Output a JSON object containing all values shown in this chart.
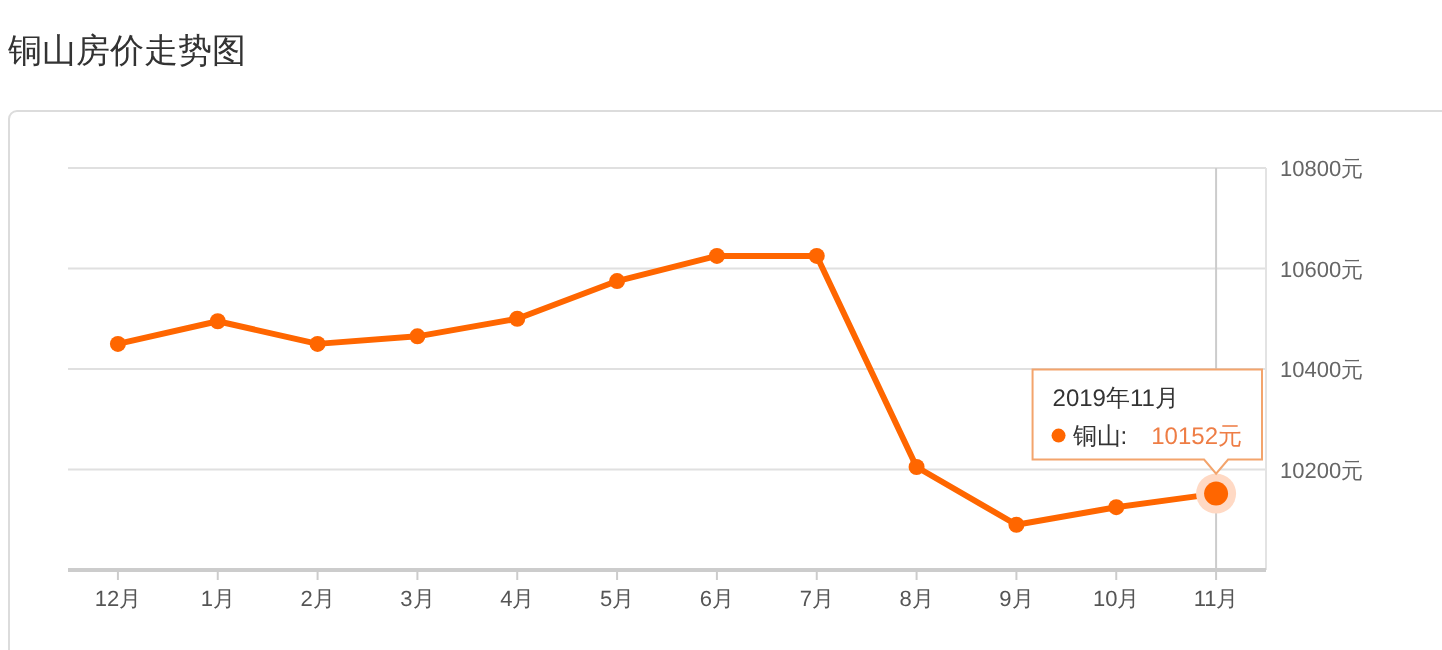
{
  "chart_data": {
    "type": "line",
    "title": "铜山房价走势图",
    "categories": [
      "12月",
      "1月",
      "2月",
      "3月",
      "4月",
      "5月",
      "6月",
      "7月",
      "8月",
      "9月",
      "10月",
      "11月"
    ],
    "series": [
      {
        "name": "铜山:",
        "color": "#ff6600",
        "values": [
          10450,
          10495,
          10450,
          10465,
          10500,
          10575,
          10625,
          10625,
          10205,
          10090,
          10125,
          10152
        ],
        "value_labels": [
          null,
          null,
          null,
          null,
          null,
          null,
          null,
          null,
          null,
          null,
          null,
          "10152元"
        ]
      }
    ],
    "ylim": [
      10000,
      10800
    ],
    "yticks": [
      {
        "value": 10200,
        "label": "10200元"
      },
      {
        "value": 10400,
        "label": "10400元"
      },
      {
        "value": 10600,
        "label": "10600元"
      },
      {
        "value": 10800,
        "label": "10800元"
      }
    ],
    "grid": "y",
    "marker": "circle",
    "line_style": "solid",
    "ref_lines": [
      {
        "axis": "x",
        "value": "11月",
        "color": "#cccccc"
      }
    ],
    "annotations": [
      "2019年11月"
    ]
  }
}
